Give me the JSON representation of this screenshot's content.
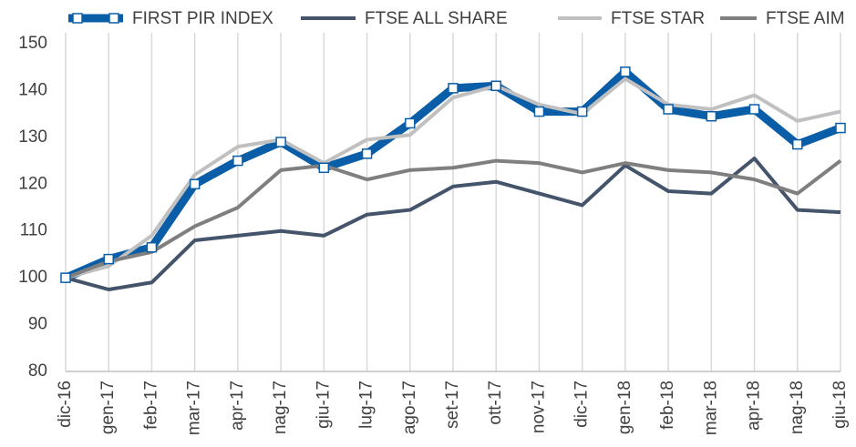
{
  "chart_data": {
    "type": "line",
    "categories": [
      "dic-16",
      "gen-17",
      "feb-17",
      "mar-17",
      "apr-17",
      "nag-17",
      "giu-17",
      "lug-17",
      "ago-17",
      "set-17",
      "ott-17",
      "nov-17",
      "dic-17",
      "gen-18",
      "feb-18",
      "mar-18",
      "apr-18",
      "nag-18",
      "giu-18"
    ],
    "series": [
      {
        "name": "FIRST PIR INDEX",
        "color": "#0a5ea8",
        "values": [
          100,
          104,
          106.5,
          120,
          125,
          129,
          123.5,
          126.5,
          133,
          140.5,
          141,
          135.5,
          135.5,
          144,
          136,
          134.5,
          136,
          128.5,
          132
        ]
      },
      {
        "name": "FTSE ALL SHARE",
        "color": "#44546a",
        "values": [
          100,
          97.5,
          99,
          108,
          109,
          110,
          109,
          113.5,
          114.5,
          119.5,
          120.5,
          118,
          115.5,
          124,
          118.5,
          118,
          125.5,
          114.5,
          114
        ]
      },
      {
        "name": "FTSE STAR",
        "color": "#c0c0c0",
        "values": [
          100,
          102.5,
          109,
          122,
          128,
          129.5,
          124.5,
          129.5,
          130.5,
          138.5,
          141,
          137,
          135,
          142.5,
          137,
          136,
          139,
          133.5,
          135.5
        ]
      },
      {
        "name": "FTSE AIM",
        "color": "#7f7f7f",
        "values": [
          100,
          103.5,
          105.5,
          111,
          115,
          123,
          124,
          121,
          123,
          123.5,
          125,
          124.5,
          122.5,
          124.5,
          123,
          122.5,
          121,
          118,
          125
        ]
      }
    ],
    "ylim": [
      80,
      150
    ],
    "yticks": [
      80,
      90,
      100,
      110,
      120,
      130,
      140,
      150
    ],
    "grid": true,
    "legend": "top"
  }
}
